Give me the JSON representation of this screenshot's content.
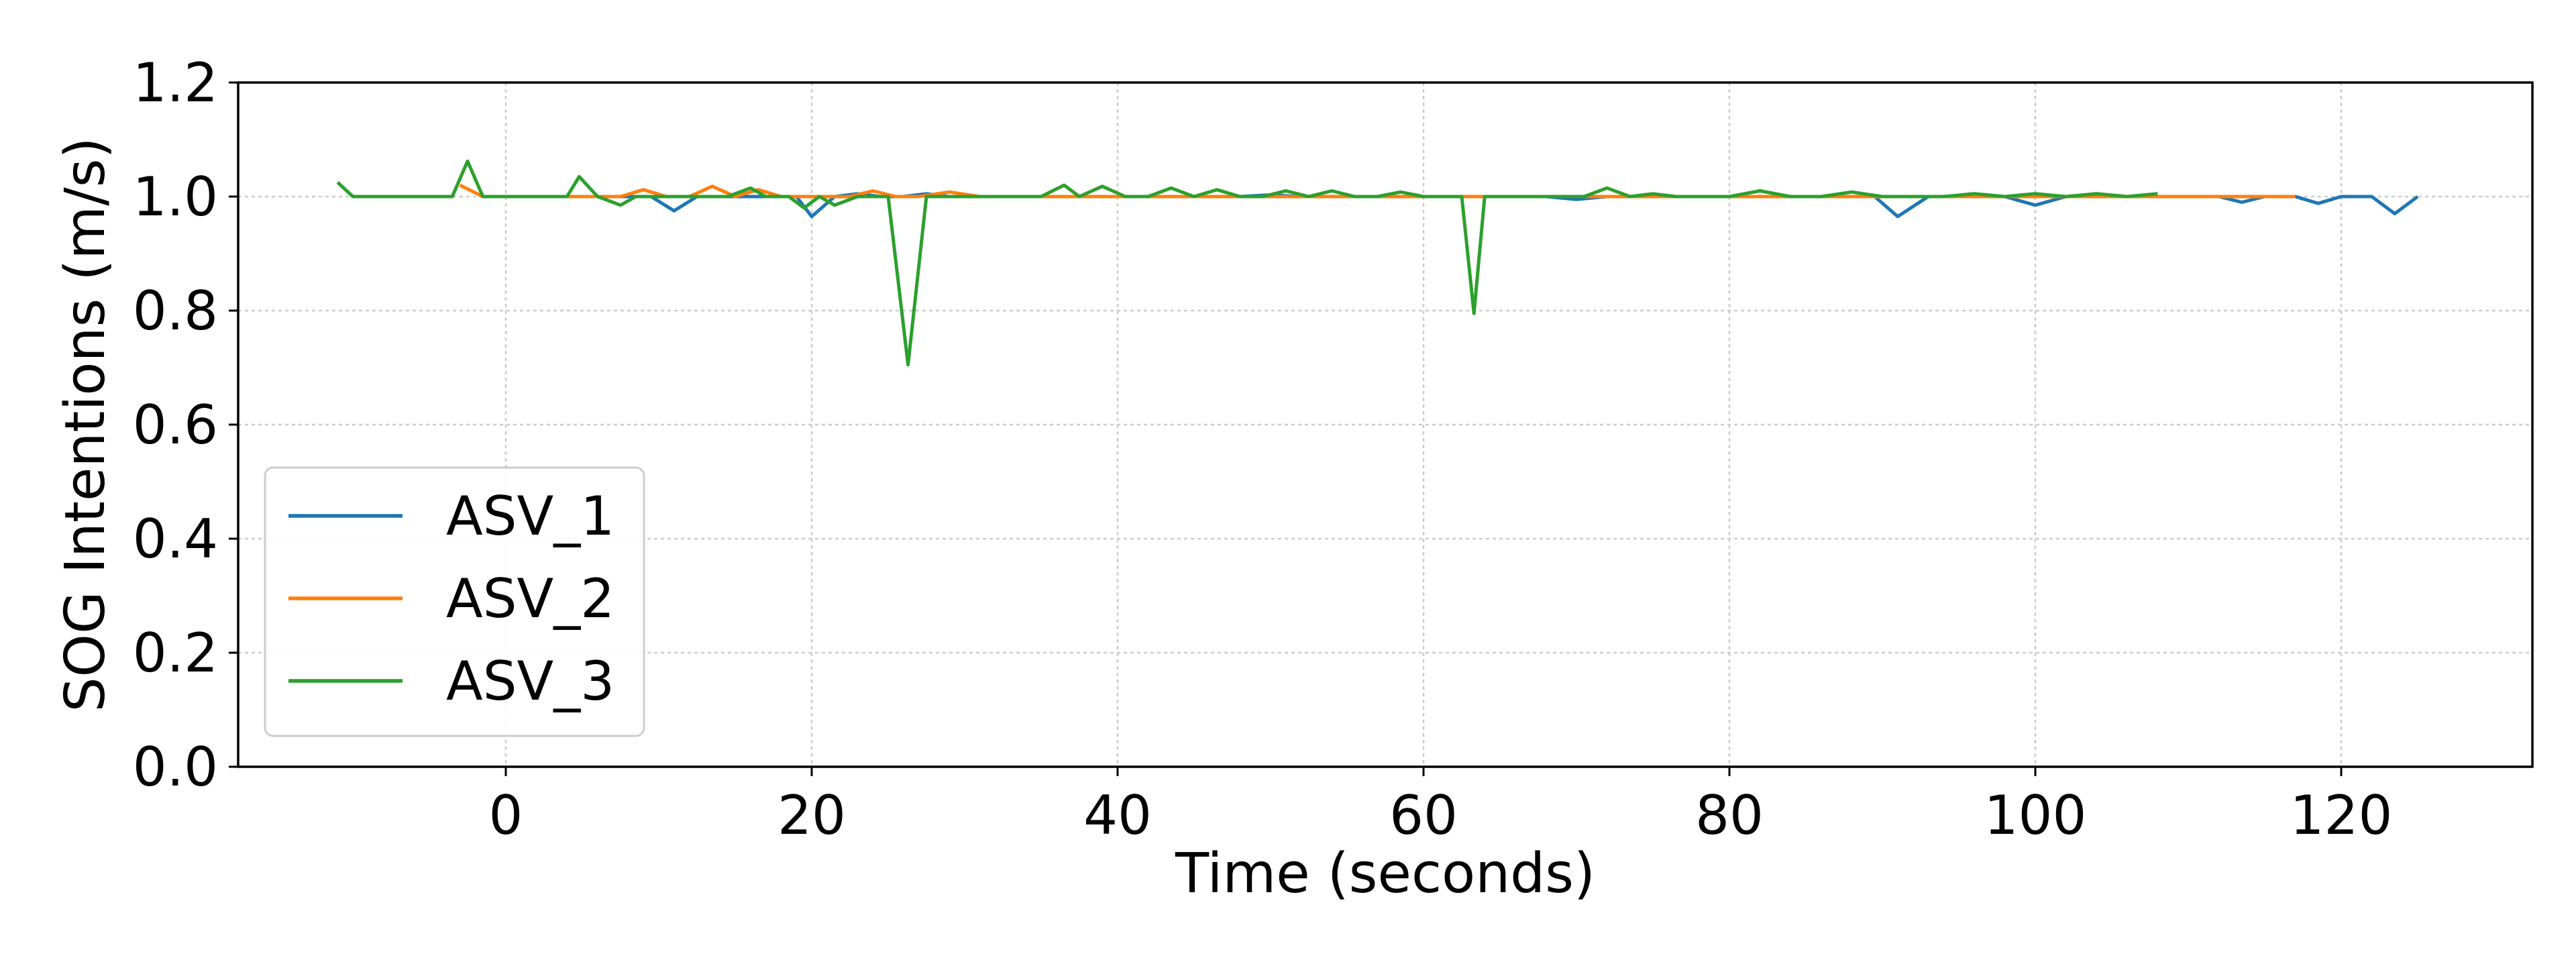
{
  "chart_data": {
    "type": "line",
    "title": "",
    "xlabel": "Time (seconds)",
    "ylabel": "SOG Intentions (m/s)",
    "xlim": [
      -17.5,
      132.5
    ],
    "ylim": [
      0.0,
      1.2
    ],
    "xticks": [
      0,
      20,
      40,
      60,
      80,
      100,
      120
    ],
    "yticks": [
      0.0,
      0.2,
      0.4,
      0.6,
      0.8,
      1.0,
      1.2
    ],
    "xtick_labels": [
      "0",
      "20",
      "40",
      "60",
      "80",
      "100",
      "120"
    ],
    "ytick_labels": [
      "0.0",
      "0.2",
      "0.4",
      "0.6",
      "0.8",
      "1.0",
      "1.2"
    ],
    "grid": true,
    "legend_position": "lower-left",
    "series": [
      {
        "name": "ASV_1",
        "color": "#1f77b4",
        "x": [
          0,
          2,
          4,
          6,
          8,
          9.5,
          11,
          12.5,
          14,
          16,
          17.5,
          19,
          20,
          21.5,
          23,
          24.5,
          26,
          27.5,
          29,
          31,
          33,
          36,
          38,
          40,
          42,
          44,
          46,
          48,
          50,
          52,
          54,
          56,
          58,
          60,
          62,
          64,
          66,
          68,
          70,
          72,
          74,
          76,
          78,
          80,
          82,
          84,
          86,
          88,
          89.5,
          91,
          93,
          95,
          96.5,
          98,
          100,
          102,
          104,
          106,
          108,
          110,
          112,
          113.5,
          115,
          117,
          118.5,
          120,
          122,
          123.5,
          125
        ],
        "y": [
          1.0,
          1.0,
          1.0,
          1.0,
          1.0,
          1.0,
          0.975,
          1.0,
          1.0,
          1.0,
          1.0,
          1.0,
          0.965,
          1.0,
          1.005,
          1.0,
          1.0,
          1.005,
          1.0,
          1.0,
          1.0,
          1.0,
          1.0,
          1.0,
          1.0,
          1.0,
          1.0,
          1.0,
          1.003,
          1.0,
          1.0,
          1.0,
          1.0,
          1.0,
          1.0,
          1.0,
          1.0,
          1.0,
          0.995,
          1.0,
          1.0,
          1.0,
          1.0,
          1.0,
          1.0,
          1.0,
          1.0,
          1.0,
          1.0,
          0.965,
          1.0,
          1.0,
          1.0,
          1.0,
          0.985,
          1.0,
          1.0,
          1.0,
          1.0,
          1.0,
          1.0,
          0.99,
          1.0,
          1.0,
          0.988,
          1.0,
          1.0,
          0.97,
          1.0
        ]
      },
      {
        "name": "ASV_2",
        "color": "#ff7f0e",
        "x": [
          -3,
          -1.5,
          0,
          2,
          4,
          6,
          7.5,
          9,
          10.5,
          12,
          13.5,
          15,
          16.5,
          18,
          19.5,
          21,
          22.5,
          24,
          25.5,
          27,
          29,
          31,
          33,
          35,
          37,
          39,
          41,
          43,
          45,
          47,
          50,
          55,
          60,
          65,
          70,
          75,
          80,
          85,
          90,
          95,
          100,
          105,
          110,
          115,
          117
        ],
        "y": [
          1.02,
          1.0,
          1.0,
          1.0,
          1.0,
          1.0,
          1.0,
          1.012,
          1.0,
          1.0,
          1.018,
          1.0,
          1.012,
          1.0,
          1.0,
          1.0,
          1.0,
          1.01,
          1.0,
          1.0,
          1.008,
          1.0,
          1.0,
          1.0,
          1.0,
          1.0,
          1.0,
          1.0,
          1.0,
          1.0,
          1.0,
          1.0,
          1.0,
          1.0,
          1.0,
          1.0,
          1.0,
          1.0,
          1.0,
          1.0,
          1.0,
          1.0,
          1.0,
          1.0,
          1.0
        ]
      },
      {
        "name": "ASV_3",
        "color": "#2ca02c",
        "x": [
          -11,
          -10,
          -8,
          -6,
          -4,
          -3.5,
          -2.5,
          -1.5,
          0,
          2,
          4,
          4.8,
          6,
          7.5,
          8.5,
          10,
          11.5,
          13,
          14.5,
          16,
          17,
          18.5,
          19.5,
          20.5,
          21.5,
          23,
          25,
          26.3,
          27.5,
          29,
          31,
          33,
          35,
          36.5,
          37.5,
          39,
          40.5,
          42,
          43.5,
          45,
          46.5,
          48,
          49.5,
          51,
          52.5,
          54,
          55.5,
          57,
          58.5,
          60,
          62,
          62.5,
          63.3,
          64,
          65.5,
          67,
          69,
          70.5,
          72,
          73.5,
          75,
          76.5,
          78,
          80,
          82,
          84,
          86,
          88,
          90,
          92,
          94,
          96,
          98,
          100,
          102,
          104,
          106,
          108
        ],
        "y": [
          1.025,
          1.0,
          1.0,
          1.0,
          1.0,
          1.0,
          1.062,
          1.0,
          1.0,
          1.0,
          1.0,
          1.035,
          1.0,
          0.985,
          1.0,
          1.0,
          1.0,
          1.0,
          1.0,
          1.015,
          1.0,
          1.0,
          0.98,
          1.0,
          0.985,
          1.0,
          1.0,
          0.705,
          1.0,
          1.0,
          1.0,
          1.0,
          1.0,
          1.02,
          1.0,
          1.018,
          1.0,
          1.0,
          1.015,
          1.0,
          1.012,
          1.0,
          1.0,
          1.01,
          1.0,
          1.01,
          1.0,
          1.0,
          1.008,
          1.0,
          1.0,
          1.0,
          0.795,
          1.0,
          1.0,
          1.0,
          1.0,
          1.0,
          1.015,
          1.0,
          1.005,
          1.0,
          1.0,
          1.0,
          1.01,
          1.0,
          1.0,
          1.008,
          1.0,
          1.0,
          1.0,
          1.005,
          1.0,
          1.005,
          1.0,
          1.005,
          1.0,
          1.005
        ]
      }
    ]
  }
}
